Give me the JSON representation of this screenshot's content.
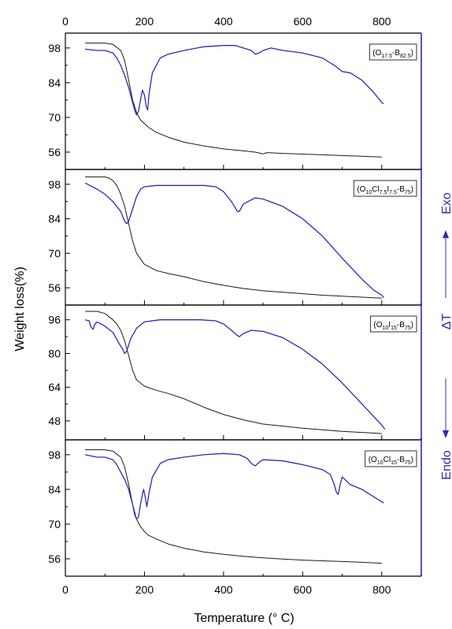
{
  "chart_data": {
    "type": "line",
    "xlabel": "Temperature (° C)",
    "ylabel": "Weight loss(%)",
    "right_axis_label": {
      "endo": "Endo",
      "delta_t": "ΔT",
      "exo": "Exo"
    },
    "xlim": [
      0,
      900
    ],
    "x_ticks": [
      "0",
      "200",
      "400",
      "600",
      "800"
    ],
    "colors": {
      "weight": "#1a1a1a",
      "dta": "#2b2bb5",
      "axis_blue": "#2b2bb5"
    },
    "panels": [
      {
        "label_parts": [
          {
            "t": "(O",
            "sub": false
          },
          {
            "t": "17.5",
            "sub": true
          },
          {
            "t": "-B",
            "sub": false
          },
          {
            "t": "82.5",
            "sub": true
          },
          {
            "t": ")",
            "sub": false
          }
        ],
        "ylim": [
          49,
          104
        ],
        "yticks": [
          56,
          70,
          84,
          98
        ],
        "series": [
          {
            "role": "weight",
            "x": [
              50,
              100,
              120,
              140,
              150,
              160,
              170,
              180,
              190,
              200,
              210,
              230,
              260,
              300,
              350,
              400,
              450,
              480,
              500,
              510,
              550,
              600,
              650,
              700,
              750,
              800
            ],
            "y": [
              100,
              100,
              99.5,
              97,
              93,
              85,
              77,
              72,
              69,
              67.5,
              66,
              64,
              62,
              60,
              58.5,
              57.3,
              56.5,
              56,
              55.3,
              55.8,
              55.5,
              55.2,
              54.9,
              54.6,
              54.3,
              54
            ]
          },
          {
            "role": "dta",
            "x": [
              50,
              80,
              100,
              110,
              120,
              130,
              140,
              150,
              160,
              170,
              175,
              180,
              185,
              190,
              195,
              200,
              205,
              208,
              212,
              220,
              240,
              260,
              300,
              350,
              400,
              430,
              450,
              470,
              480,
              490,
              500,
              520,
              550,
              600,
              650,
              680,
              700,
              720,
              750,
              780,
              800,
              805
            ],
            "y": [
              97.5,
              97,
              97,
              96.5,
              96,
              94,
              91,
              87,
              82,
              76,
              73,
              71,
              72.5,
              77,
              81,
              79,
              74,
              73,
              80,
              88,
              94,
              95.5,
              97,
              98.5,
              99,
              99,
              98,
              97,
              95.5,
              96,
              97,
              98,
              97,
              96,
              94,
              91,
              88.5,
              88,
              85,
              80,
              76,
              75.5
            ]
          }
        ]
      },
      {
        "label_parts": [
          {
            "t": "(O",
            "sub": false
          },
          {
            "t": "10",
            "sub": true
          },
          {
            "t": "Cl",
            "sub": false
          },
          {
            "t": "7.5",
            "sub": true
          },
          {
            "t": "I",
            "sub": false
          },
          {
            "t": "7.5",
            "sub": true
          },
          {
            "t": "-B",
            "sub": false
          },
          {
            "t": "75",
            "sub": true
          },
          {
            "t": ")",
            "sub": false
          }
        ],
        "ylim": [
          49,
          104
        ],
        "yticks": [
          56,
          70,
          84,
          98
        ],
        "series": [
          {
            "role": "weight",
            "x": [
              50,
              100,
              110,
              120,
              130,
              140,
              150,
              160,
              170,
              180,
              200,
              230,
              260,
              300,
              350,
              400,
              450,
              500,
              550,
              600,
              650,
              700,
              750,
              800
            ],
            "y": [
              101,
              101,
              100.5,
              99.5,
              97.5,
              94,
              89,
              82,
              75,
              70,
              65.5,
              63,
              61.8,
              60.5,
              58.5,
              57,
              55.7,
              54.8,
              54.2,
              53.6,
              53,
              52.6,
              52.2,
              51.8
            ]
          },
          {
            "role": "dta",
            "x": [
              50,
              80,
              100,
              120,
              140,
              150,
              155,
              160,
              170,
              180,
              190,
              200,
              230,
              260,
              300,
              350,
              380,
              400,
              420,
              435,
              440,
              450,
              480,
              500,
              550,
              600,
              650,
              700,
              750,
              780,
              800,
              805
            ],
            "y": [
              98.5,
              96,
              94,
              91,
              87,
              83,
              82,
              83,
              88,
              93,
              96,
              97,
              97.5,
              97.5,
              97.5,
              97.5,
              97,
              95,
              91,
              87,
              87,
              90,
              92.5,
              92,
              89,
              84,
              77,
              68,
              59.5,
              55,
              53,
              52
            ]
          }
        ]
      },
      {
        "label_parts": [
          {
            "t": "(O",
            "sub": false
          },
          {
            "t": "10",
            "sub": true
          },
          {
            "t": "I",
            "sub": false
          },
          {
            "t": "15",
            "sub": true
          },
          {
            "t": "-B",
            "sub": false
          },
          {
            "t": "75",
            "sub": true
          },
          {
            "t": ")",
            "sub": false
          }
        ],
        "ylim": [
          39,
          103
        ],
        "yticks": [
          48,
          64,
          80,
          96
        ],
        "series": [
          {
            "role": "weight",
            "x": [
              50,
              80,
              100,
              110,
              120,
              130,
              140,
              150,
              160,
              170,
              180,
              200,
              230,
              260,
              300,
              350,
              400,
              450,
              500,
              550,
              600,
              650,
              700,
              750,
              800
            ],
            "y": [
              100,
              100,
              99,
              97.5,
              96,
              94,
              91,
              86,
              79,
              72,
              67.5,
              64.5,
              62.5,
              61,
              58.5,
              54.5,
              51,
              48.5,
              46.5,
              45.5,
              44.5,
              43.8,
              43,
              42.5,
              42
            ]
          },
          {
            "role": "dta",
            "x": [
              50,
              60,
              65,
              70,
              75,
              80,
              90,
              100,
              120,
              135,
              145,
              150,
              155,
              165,
              180,
              200,
              240,
              300,
              340,
              380,
              400,
              420,
              435,
              440,
              450,
              470,
              500,
              550,
              600,
              650,
              700,
              750,
              780,
              800,
              808
            ],
            "y": [
              96,
              95.5,
              92.5,
              91.5,
              94,
              95,
              94,
              93,
              90,
              85,
              82,
              80,
              81,
              87,
              92,
              95,
              96,
              96,
              96,
              95.5,
              94,
              91,
              88.5,
              88,
              89.5,
              91,
              90.5,
              87.5,
              82,
              75,
              66,
              56,
              50,
              46,
              44
            ]
          }
        ]
      },
      {
        "label_parts": [
          {
            "t": "(O",
            "sub": false
          },
          {
            "t": "10",
            "sub": true
          },
          {
            "t": "Cl",
            "sub": false
          },
          {
            "t": "15",
            "sub": true
          },
          {
            "t": "-B",
            "sub": false
          },
          {
            "t": "75",
            "sub": true
          },
          {
            "t": ")",
            "sub": false
          }
        ],
        "ylim": [
          49,
          104
        ],
        "yticks": [
          56,
          70,
          84,
          98
        ],
        "series": [
          {
            "role": "weight",
            "x": [
              50,
              100,
              120,
              140,
              150,
              160,
              170,
              180,
              190,
              200,
              210,
              230,
              260,
              300,
              350,
              400,
              450,
              500,
              550,
              600,
              650,
              700,
              750,
              800
            ],
            "y": [
              100,
              100,
              99.5,
              97,
              93,
              86,
              78,
              72,
              69,
              67,
              65.5,
              64,
              62,
              60.3,
              58.8,
              57.8,
              57,
              56.4,
              55.9,
              55.5,
              55.2,
              54.9,
              54.6,
              54.2
            ]
          },
          {
            "role": "dta",
            "x": [
              50,
              80,
              100,
              110,
              120,
              130,
              140,
              150,
              160,
              170,
              175,
              180,
              185,
              190,
              195,
              198,
              202,
              206,
              212,
              220,
              240,
              260,
              300,
              350,
              400,
              440,
              460,
              470,
              480,
              490,
              500,
              550,
              600,
              650,
              670,
              680,
              685,
              690,
              695,
              700,
              720,
              750,
              780,
              800,
              805
            ],
            "y": [
              98,
              97,
              97,
              96.5,
              96,
              94,
              91,
              88,
              84,
              78,
              74,
              72,
              73,
              78,
              82,
              84,
              81,
              77,
              83,
              89,
              94.5,
              96,
              97,
              98,
              98.5,
              98,
              96.5,
              94.5,
              93.5,
              95,
              96,
              95.5,
              94,
              92,
              90,
              86,
              83,
              82,
              86,
              89,
              86,
              84,
              81,
              79,
              78.5
            ]
          }
        ]
      }
    ]
  }
}
